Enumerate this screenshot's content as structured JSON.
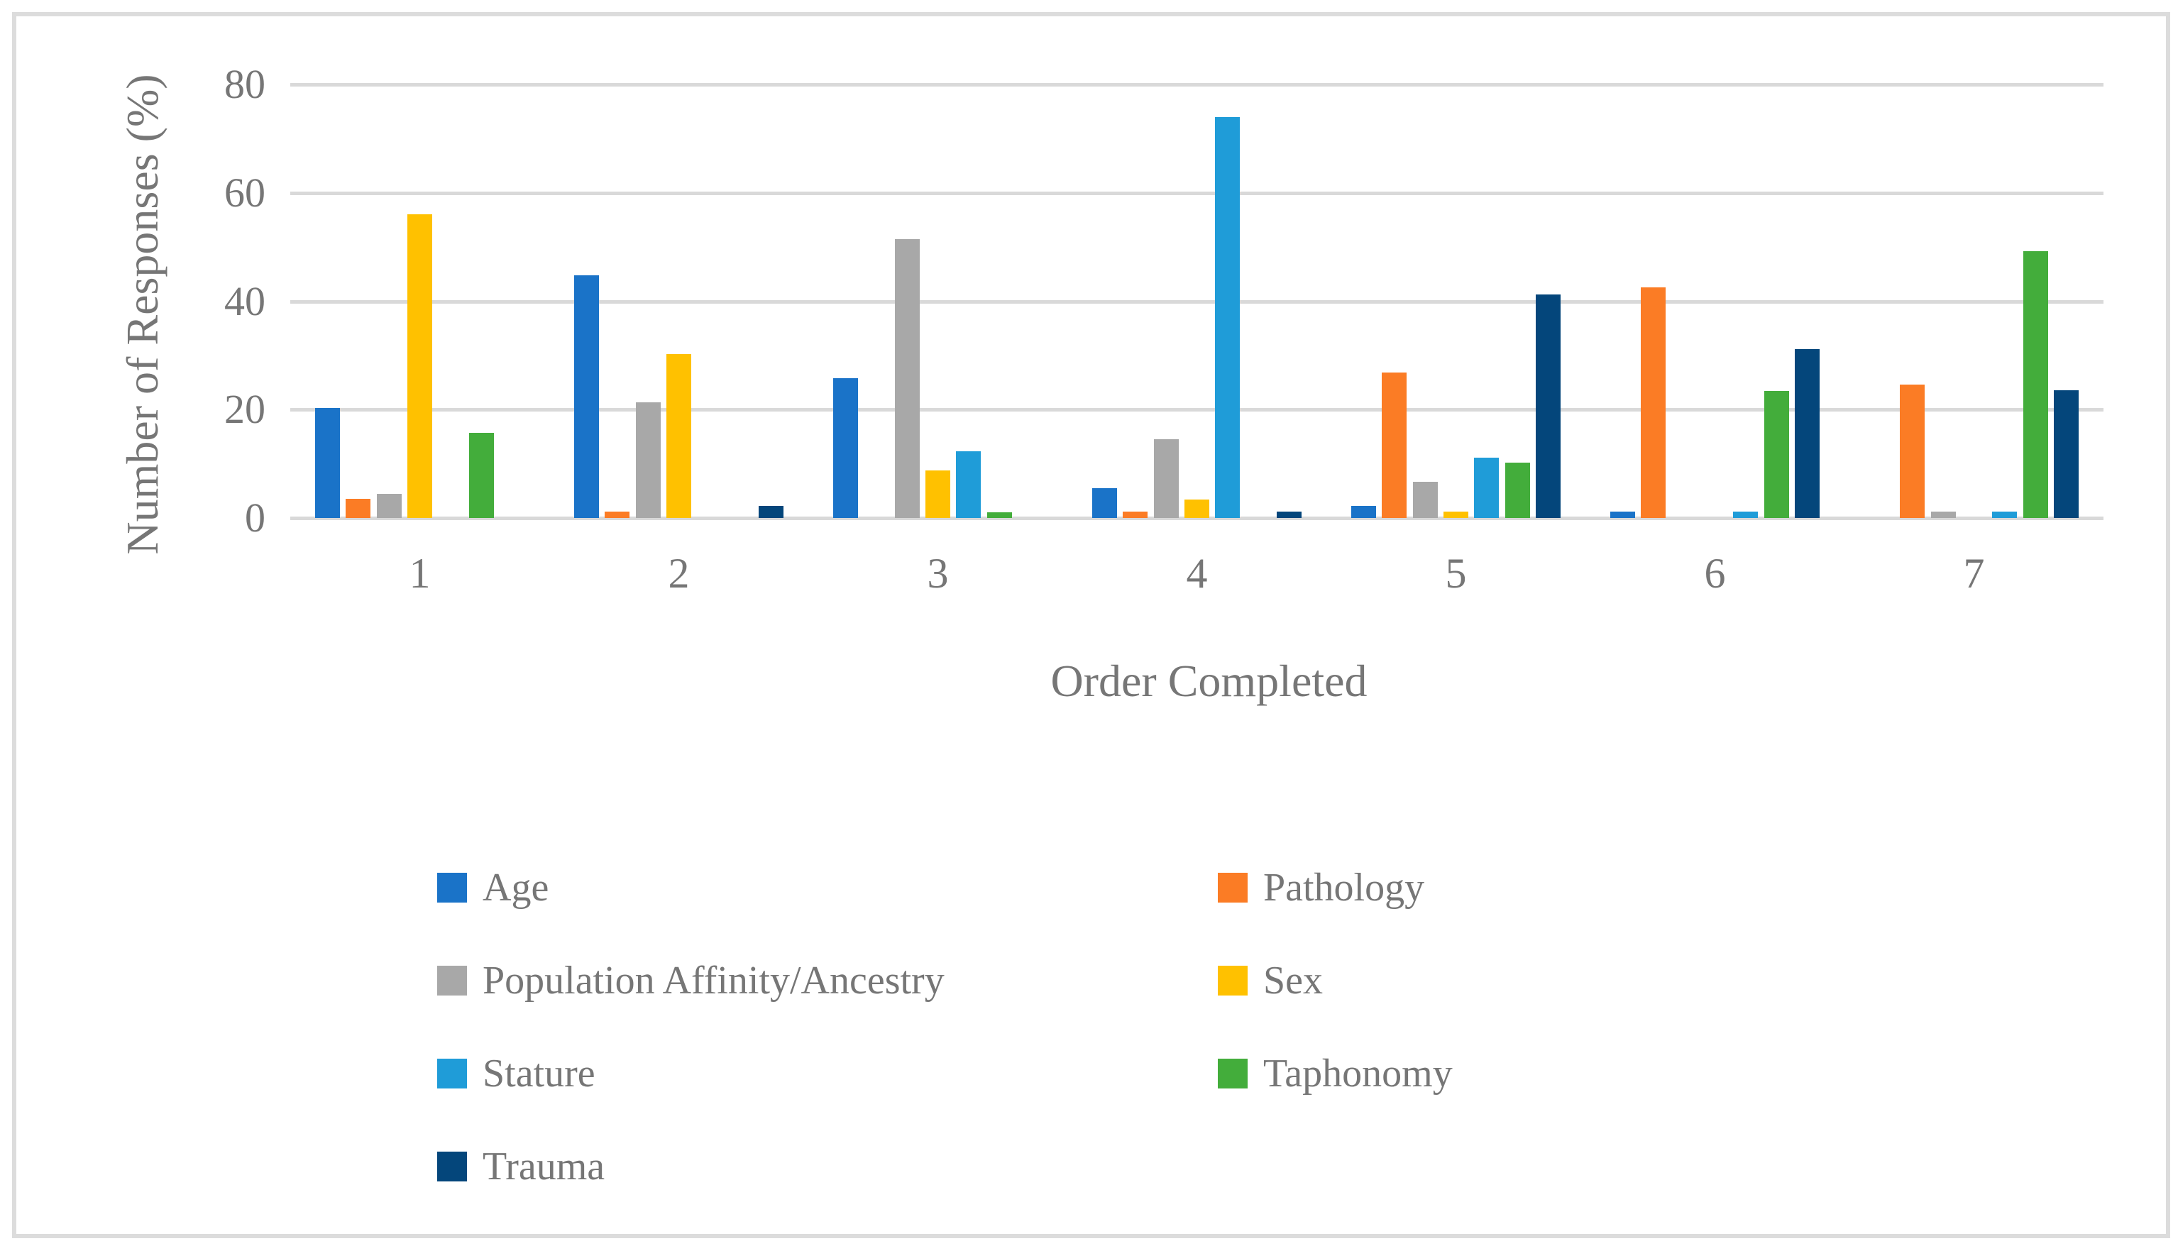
{
  "chart_data": {
    "type": "bar",
    "title": "",
    "xlabel": "Order Completed",
    "ylabel": "Number of Responses (%)",
    "categories": [
      "1",
      "2",
      "3",
      "4",
      "5",
      "6",
      "7"
    ],
    "ylim": [
      0,
      80
    ],
    "yticks": [
      0,
      20,
      40,
      60,
      80
    ],
    "grid": true,
    "legend_position": "bottom-two-columns",
    "series": [
      {
        "name": "Age",
        "color": "#1a73c8",
        "values": [
          20.3,
          44.8,
          25.8,
          5.5,
          2.2,
          1.2,
          0
        ]
      },
      {
        "name": "Pathology",
        "color": "#fb7c25",
        "values": [
          3.5,
          1.2,
          0,
          1.2,
          26.8,
          42.5,
          24.6
        ]
      },
      {
        "name": "Population Affinity/Ancestry",
        "color": "#a8a8a8",
        "values": [
          4.4,
          21.3,
          51.4,
          14.5,
          6.7,
          0,
          1.2
        ]
      },
      {
        "name": "Sex",
        "color": "#ffc100",
        "values": [
          56.1,
          30.3,
          8.8,
          3.4,
          1.2,
          0,
          0
        ]
      },
      {
        "name": "Stature",
        "color": "#1f9cd8",
        "values": [
          0,
          0,
          12.3,
          74.0,
          11.1,
          1.2,
          1.2
        ]
      },
      {
        "name": "Taphonomy",
        "color": "#43ad3b",
        "values": [
          15.7,
          0,
          1.1,
          0,
          10.2,
          23.5,
          49.2
        ]
      },
      {
        "name": "Trauma",
        "color": "#04467b",
        "values": [
          0,
          2.2,
          0,
          1.2,
          41.2,
          31.2,
          23.6
        ]
      }
    ]
  },
  "theme": {
    "grid_color": "#d9d9d9",
    "text_color": "#767676",
    "frame_color": "#dcdcdc",
    "background": "#ffffff"
  }
}
